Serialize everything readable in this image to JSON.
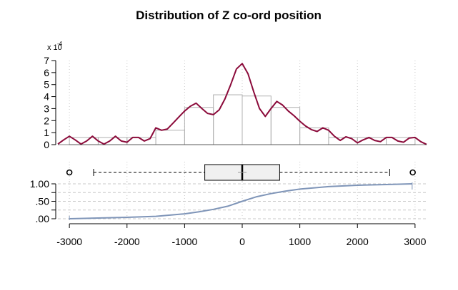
{
  "chart_data": {
    "title": "Distribution of Z co-ord position",
    "x_axis": {
      "range": [
        -3200,
        3200
      ],
      "ticks": [
        -3000,
        -2000,
        -1000,
        0,
        1000,
        2000,
        3000
      ],
      "tick_labels": [
        "-3000",
        "-2000",
        "-1000",
        "0",
        "1000",
        "2000",
        "3000"
      ],
      "grid": true
    },
    "panels": [
      {
        "type": "histogram_density",
        "y_multiplier_label": "x 10",
        "y_multiplier_exponent": "-4",
        "y_axis": {
          "range": [
            0,
            7
          ],
          "ticks": [
            0,
            1,
            2,
            3,
            4,
            5,
            6,
            7
          ],
          "tick_labels": [
            "0",
            "1",
            "2",
            "3",
            "4",
            "5",
            "6",
            "7"
          ]
        },
        "histogram": {
          "bin_edges": [
            -3000,
            -2500,
            -2000,
            -1500,
            -1000,
            -500,
            0,
            500,
            1000,
            1500,
            2000,
            2500,
            3000
          ],
          "values": [
            0.6,
            0.6,
            0.6,
            1.2,
            3.1,
            4.15,
            4.05,
            3.1,
            1.4,
            0.6,
            0.6,
            0.6
          ]
        },
        "density": {
          "x": [
            -3200,
            -3100,
            -3000,
            -2900,
            -2800,
            -2700,
            -2600,
            -2500,
            -2400,
            -2300,
            -2200,
            -2100,
            -2000,
            -1900,
            -1800,
            -1700,
            -1600,
            -1500,
            -1400,
            -1300,
            -1200,
            -1100,
            -1000,
            -900,
            -800,
            -700,
            -600,
            -500,
            -400,
            -300,
            -200,
            -100,
            0,
            100,
            200,
            300,
            400,
            500,
            600,
            700,
            800,
            900,
            1000,
            1100,
            1200,
            1300,
            1400,
            1500,
            1600,
            1700,
            1800,
            1900,
            2000,
            2100,
            2200,
            2300,
            2400,
            2500,
            2600,
            2700,
            2800,
            2900,
            3000,
            3100,
            3200
          ],
          "y": [
            0.05,
            0.4,
            0.7,
            0.4,
            0.05,
            0.3,
            0.7,
            0.3,
            0.05,
            0.3,
            0.7,
            0.3,
            0.2,
            0.6,
            0.6,
            0.3,
            0.5,
            1.4,
            1.2,
            1.3,
            1.8,
            2.3,
            2.8,
            3.2,
            3.45,
            3.0,
            2.6,
            2.5,
            2.9,
            3.8,
            5.0,
            6.3,
            6.75,
            5.9,
            4.4,
            3.0,
            2.35,
            3.0,
            3.6,
            3.3,
            2.8,
            2.4,
            1.95,
            1.55,
            1.25,
            1.1,
            1.4,
            1.2,
            0.7,
            0.35,
            0.65,
            0.5,
            0.15,
            0.4,
            0.6,
            0.35,
            0.25,
            0.6,
            0.6,
            0.3,
            0.2,
            0.55,
            0.6,
            0.25,
            0.02
          ]
        },
        "colors": {
          "density": "#8b0a3a",
          "bars": "#b0b0b0"
        }
      },
      {
        "type": "boxplot",
        "whisker_low": -2580,
        "q1": -650,
        "median": 0,
        "q3": 650,
        "whisker_high": 2560,
        "mean": 0,
        "outliers": [
          -3000,
          2960
        ],
        "colors": {
          "box_fill": "#f0f0f0"
        }
      },
      {
        "type": "ecdf",
        "y_axis": {
          "range": [
            0,
            1
          ],
          "ticks": [
            0,
            0.25,
            0.5,
            0.75,
            1
          ],
          "tick_labels": [
            ".00",
            ".50",
            "1.00"
          ]
        },
        "x": [
          -3000,
          -2500,
          -2000,
          -1500,
          -1000,
          -750,
          -500,
          -250,
          0,
          250,
          500,
          750,
          1000,
          1500,
          2000,
          2500,
          2950
        ],
        "y": [
          0.0,
          0.02,
          0.04,
          0.07,
          0.14,
          0.2,
          0.27,
          0.36,
          0.5,
          0.63,
          0.72,
          0.79,
          0.85,
          0.92,
          0.96,
          0.98,
          1.0
        ],
        "colors": {
          "line": "#7f95b8"
        }
      }
    ]
  }
}
